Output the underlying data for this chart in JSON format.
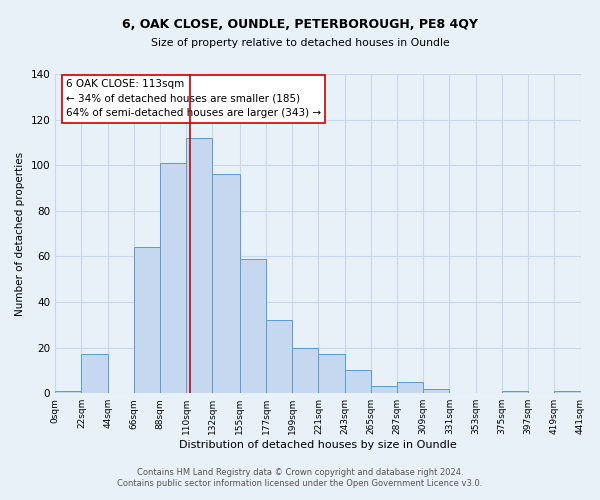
{
  "title1": "6, OAK CLOSE, OUNDLE, PETERBOROUGH, PE8 4QY",
  "title2": "Size of property relative to detached houses in Oundle",
  "xlabel": "Distribution of detached houses by size in Oundle",
  "ylabel": "Number of detached properties",
  "bar_color": "#c5d8f0",
  "bar_edge_color": "#5b9bd5",
  "bin_edges": [
    0,
    22,
    44,
    66,
    88,
    110,
    132,
    155,
    177,
    199,
    221,
    243,
    265,
    287,
    309,
    331,
    353,
    375,
    397,
    419,
    441
  ],
  "bar_heights": [
    1,
    17,
    0,
    64,
    101,
    112,
    96,
    59,
    32,
    20,
    17,
    10,
    3,
    5,
    2,
    0,
    0,
    1,
    0,
    1
  ],
  "tick_labels": [
    "0sqm",
    "22sqm",
    "44sqm",
    "66sqm",
    "88sqm",
    "110sqm",
    "132sqm",
    "155sqm",
    "177sqm",
    "199sqm",
    "221sqm",
    "243sqm",
    "265sqm",
    "287sqm",
    "309sqm",
    "331sqm",
    "353sqm",
    "375sqm",
    "397sqm",
    "419sqm",
    "441sqm"
  ],
  "property_name": "6 OAK CLOSE: 113sqm",
  "annotation_line1": "← 34% of detached houses are smaller (185)",
  "annotation_line2": "64% of semi-detached houses are larger (343) →",
  "vline_x": 113,
  "vline_color": "#cc0000",
  "annotation_box_color": "#ffffff",
  "annotation_box_edge": "#cc0000",
  "ylim": [
    0,
    140
  ],
  "grid_color": "#c8d8ea",
  "background_color": "#e8f0f8",
  "footnote1": "Contains HM Land Registry data © Crown copyright and database right 2024.",
  "footnote2": "Contains public sector information licensed under the Open Government Licence v3.0."
}
